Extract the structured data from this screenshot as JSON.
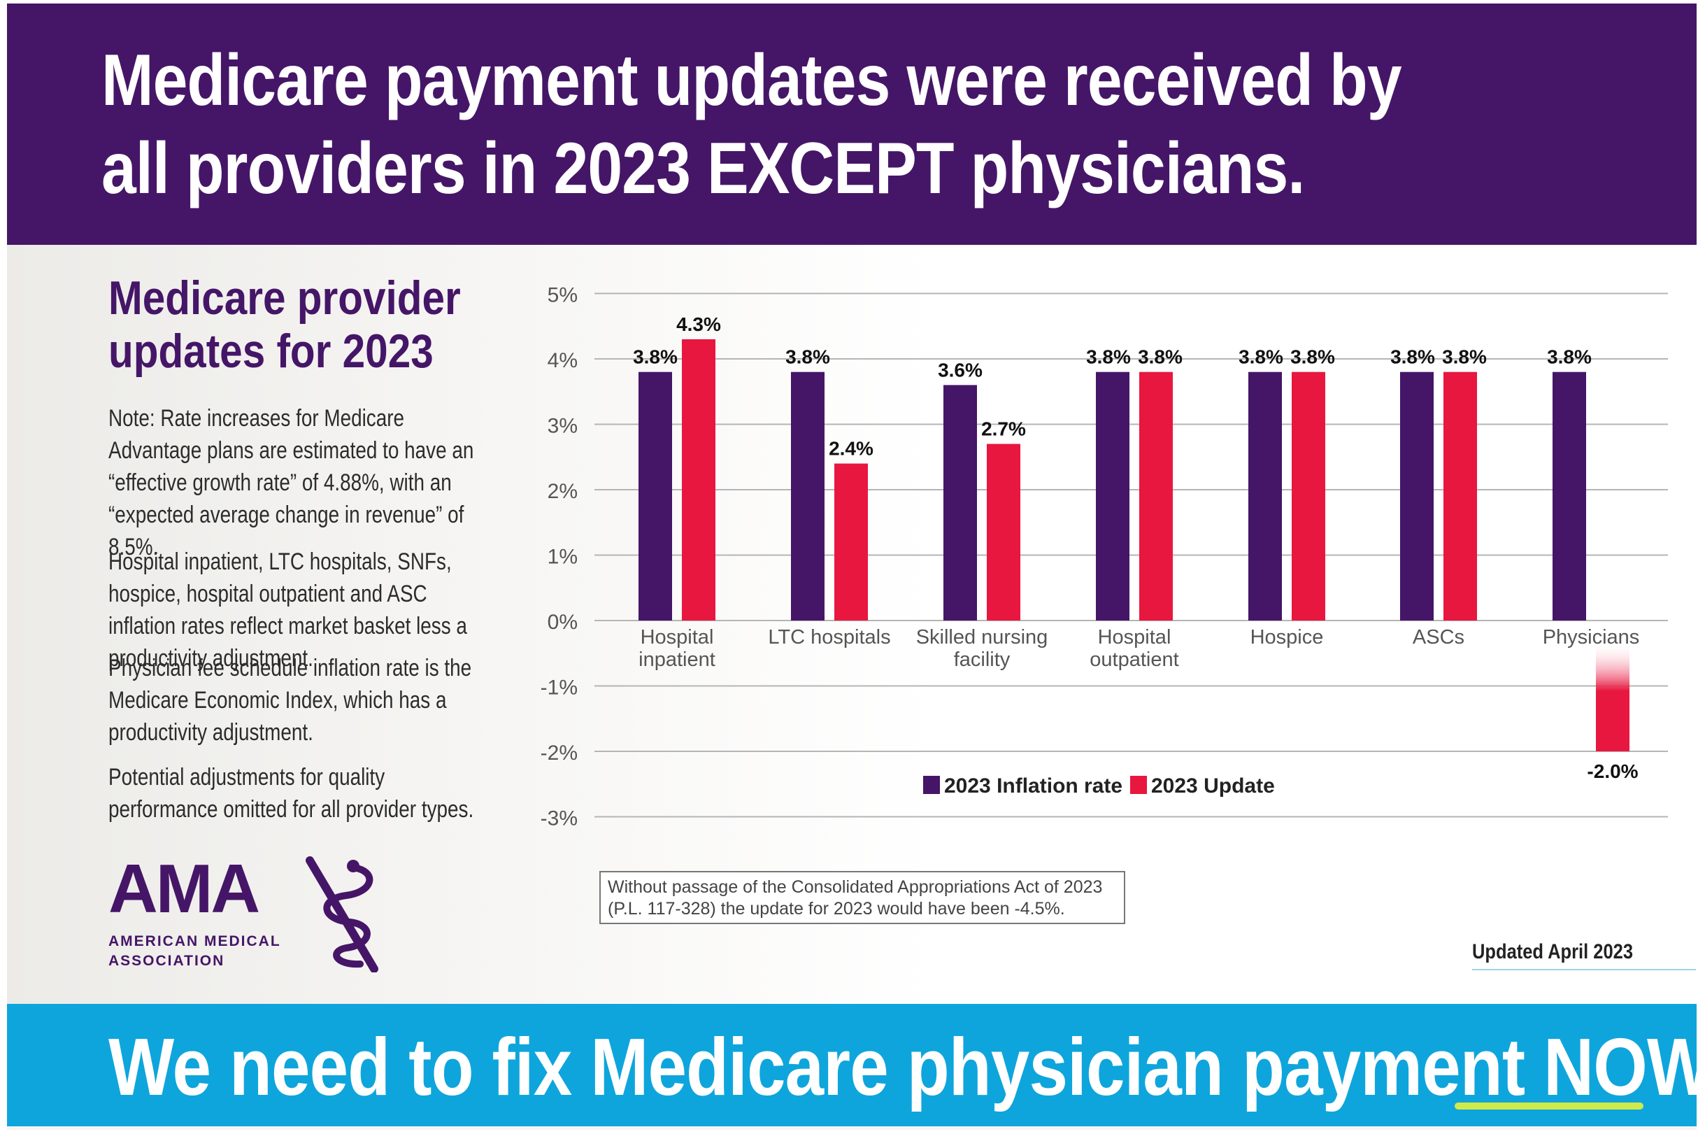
{
  "header": {
    "title": "Medicare payment updates were received by all providers in 2023 EXCEPT physicians."
  },
  "sidebar": {
    "title": "Medicare provider updates for 2023",
    "notes": [
      "Note: Rate increases for Medicare Advantage plans are estimated to have an “effective growth rate” of 4.88%, with an “expected average change in revenue” of 8.5%.",
      "Hospital inpatient, LTC hospitals, SNFs, hospice, hospital outpatient and ASC inflation rates reflect market basket less a productivity adjustment.",
      "Physician fee schedule inflation rate is the Medicare Economic Index, which has a productivity adjustment.",
      "Potential adjustments for quality performance omitted for all provider types."
    ]
  },
  "logo": {
    "mark": "AMA",
    "name": "AMERICAN MEDICAL\nASSOCIATION"
  },
  "footnote": "Without passage of the Consolidated Appropriations Act of 2023 (P.L. 117-328) the update for 2023 would have been -4.5%.",
  "updated": "Updated April 2023",
  "footer": {
    "text_before": "We need to fix Medicare physician payment ",
    "emphasis": "NOW",
    "text_after": "."
  },
  "colors": {
    "purple": "#451667",
    "red": "#e8173f",
    "blue": "#0ea5dc",
    "highlight": "#e6f23a"
  },
  "chart_data": {
    "type": "bar",
    "categories": [
      [
        "Hospital",
        "inpatient"
      ],
      [
        "LTC hospitals"
      ],
      [
        "Skilled nursing",
        "facility"
      ],
      [
        "Hospital",
        "outpatient"
      ],
      [
        "Hospice"
      ],
      [
        "ASCs"
      ],
      [
        "Physicians"
      ]
    ],
    "series": [
      {
        "name": "2023 Inflation rate",
        "color": "#451667",
        "values": [
          3.8,
          3.8,
          3.6,
          3.8,
          3.8,
          3.8,
          3.8
        ],
        "labels": [
          "3.8%",
          "3.8%",
          "3.6%",
          "3.8%",
          "3.8%",
          "3.8%",
          "3.8%"
        ]
      },
      {
        "name": "2023 Update",
        "color": "#e8173f",
        "values": [
          4.3,
          2.4,
          2.7,
          3.8,
          3.8,
          3.8,
          -2.0
        ],
        "labels": [
          "4.3%",
          "2.4%",
          "2.7%",
          "3.8%",
          "3.8%",
          "3.8%",
          "-2.0%"
        ]
      }
    ],
    "yticks": [
      "5%",
      "4%",
      "3%",
      "2%",
      "1%",
      "0%",
      "-1%",
      "-2%",
      "-3%"
    ],
    "ytick_values": [
      5,
      4,
      3,
      2,
      1,
      0,
      -1,
      -2,
      -3
    ],
    "ylim": [
      -3,
      5
    ],
    "grid": true,
    "legend": "bottom-center"
  }
}
